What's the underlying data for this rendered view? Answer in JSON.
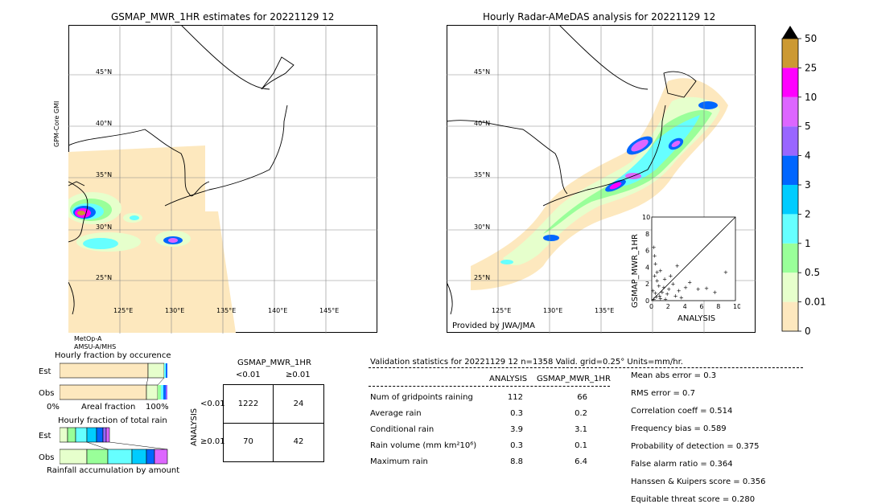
{
  "left_map": {
    "title": "GSMAP_MWR_1HR estimates for 20221129 12",
    "side_label": "GPM-Core GMI",
    "sat_labels": [
      "MetOp-A",
      "AMSU-A/MHS"
    ],
    "lat_labels": [
      "45°N",
      "40°N",
      "35°N",
      "30°N",
      "25°N"
    ],
    "lon_labels": [
      "125°E",
      "130°E",
      "135°E",
      "140°E",
      "145°E"
    ]
  },
  "right_map": {
    "title": "Hourly Radar-AMeDAS analysis for 20221129 12",
    "provider": "Provided by JWA/JMA",
    "lat_labels": [
      "45°N",
      "40°N",
      "35°N",
      "30°N",
      "25°N"
    ],
    "lon_labels": [
      "125°E",
      "130°E",
      "135°E"
    ]
  },
  "colorbar": {
    "ticks": [
      "0",
      "0.01",
      "0.5",
      "1",
      "2",
      "3",
      "4",
      "5",
      "10",
      "25",
      "50"
    ],
    "colors": [
      "#fde8be",
      "#e6ffcc",
      "#99ff99",
      "#66ffff",
      "#00ccff",
      "#0066ff",
      "#9966ff",
      "#dd66ff",
      "#ff00ff",
      "#cc9933"
    ],
    "over_color": "#000000"
  },
  "chart_data": [
    {
      "type": "scatter",
      "xlabel": "ANALYSIS",
      "ylabel": "GSMAP_MWR_1HR",
      "xlim": [
        0,
        10
      ],
      "ylim": [
        0,
        10
      ],
      "x_ticks": [
        "0",
        "2",
        "4",
        "6",
        "8",
        "10"
      ],
      "y_ticks": [
        "0",
        "2",
        "4",
        "6",
        "8",
        "10"
      ],
      "points": [
        [
          0.2,
          6.4
        ],
        [
          0.3,
          5.4
        ],
        [
          0.4,
          4.4
        ],
        [
          0.6,
          3.4
        ],
        [
          0.3,
          3.0
        ],
        [
          1.0,
          3.6
        ],
        [
          1.5,
          2.6
        ],
        [
          2.5,
          2.0
        ],
        [
          3.0,
          4.2
        ],
        [
          4.0,
          1.6
        ],
        [
          4.5,
          2.2
        ],
        [
          5.5,
          1.4
        ],
        [
          6.5,
          1.5
        ],
        [
          8.8,
          3.4
        ],
        [
          7.5,
          1.0
        ],
        [
          2.0,
          1.4
        ],
        [
          1.2,
          1.0
        ],
        [
          0.8,
          1.8
        ],
        [
          1.8,
          0.8
        ],
        [
          2.8,
          0.6
        ],
        [
          3.5,
          0.4
        ],
        [
          0.5,
          0.5
        ],
        [
          0.2,
          0.2
        ],
        [
          1.0,
          0.3
        ],
        [
          0.1,
          1.2
        ],
        [
          2.2,
          3.0
        ],
        [
          0.6,
          2.4
        ],
        [
          1.4,
          1.6
        ],
        [
          3.2,
          1.2
        ],
        [
          0.4,
          0.9
        ],
        [
          1.6,
          0.2
        ],
        [
          0.9,
          0.6
        ]
      ]
    },
    {
      "type": "bar",
      "title": "Hourly fraction by occurence",
      "categories": [
        "Est",
        "Obs"
      ],
      "xlabel": "Areal fraction",
      "x_ticks": [
        "0%",
        "100%"
      ]
    },
    {
      "type": "bar",
      "title": "Hourly fraction of total rain",
      "categories": [
        "Est",
        "Obs"
      ],
      "xlabel": "Rainfall accumulation by amount"
    }
  ],
  "contingency": {
    "title": "GSMAP_MWR_1HR",
    "col_labels": [
      "<0.01",
      "≥0.01"
    ],
    "row_axis": "ANALYSIS",
    "row_labels": [
      "<0.01",
      "≥0.01"
    ],
    "cells": [
      [
        "1222",
        "24"
      ],
      [
        "70",
        "42"
      ]
    ]
  },
  "validation": {
    "header": "Validation statistics for 20221129 12  n=1358 Valid. grid=0.25° Units=mm/hr.",
    "col_analysis": "ANALYSIS",
    "col_gsmap": "GSMAP_MWR_1HR",
    "rows": [
      {
        "label": "Num of gridpoints raining",
        "analysis": "112",
        "gsmap": "66"
      },
      {
        "label": "Average rain",
        "analysis": "0.3",
        "gsmap": "0.2"
      },
      {
        "label": "Conditional rain",
        "analysis": "3.9",
        "gsmap": "3.1"
      },
      {
        "label": "Rain volume (mm km²10⁶)",
        "analysis": "0.3",
        "gsmap": "0.1"
      },
      {
        "label": "Maximum rain",
        "analysis": "8.8",
        "gsmap": "6.4"
      }
    ],
    "scores": [
      "Mean abs error =    0.3",
      "RMS error =    0.7",
      "Correlation coeff =  0.514",
      "Frequency bias =  0.589",
      "Probability of detection =  0.375",
      "False alarm ratio =  0.364",
      "Hanssen & Kuipers score =  0.356",
      "Equitable threat score =  0.280"
    ]
  }
}
